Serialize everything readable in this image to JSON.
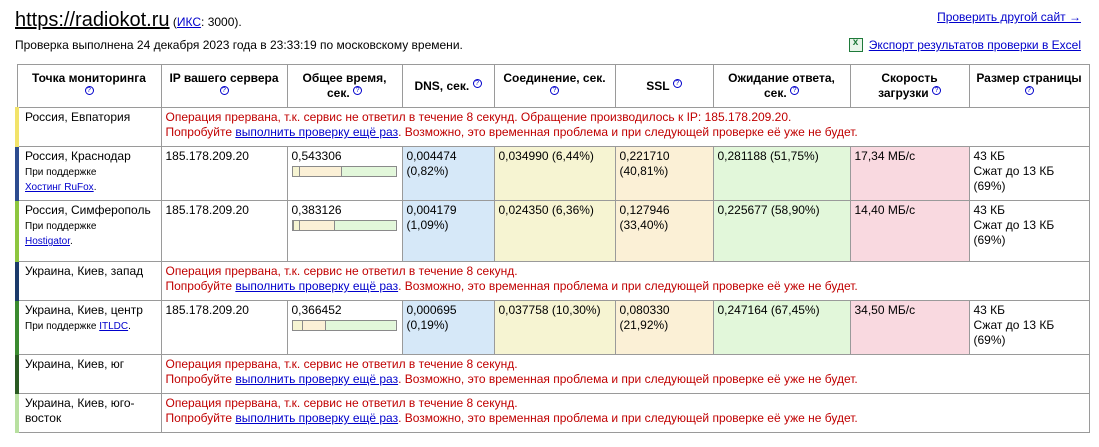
{
  "header": {
    "site": "https://radiokot.ru",
    "iks_label": "ИКС",
    "iks_value": ": 3000).",
    "iks_open": " (",
    "checked": "Проверка выполнена 24 декабря 2023 года в 23:33:19 по московскому времени.",
    "check_other": "Проверить другой сайт →",
    "export": "Экспорт результатов проверки в Excel"
  },
  "columns": {
    "point": "Точка мониторинга",
    "ip": "IP вашего сервера",
    "total": "Общее время, сек.",
    "dns": "DNS, сек.",
    "conn": "Соединение, сек.",
    "ssl": "SSL",
    "wait": "Ожидание ответа, сек.",
    "speed": "Скорость загрузки",
    "size": "Размер страницы"
  },
  "sponsor_prefix": "При поддержке",
  "rows": [
    {
      "location": "Россия, Евпатория",
      "error1": "Операция прервана, т.к. сервис не ответил в течение 8 секунд. Обращение производилось к IP: 185.178.209.20.",
      "err_try": "Попробуйте",
      "err_link": "выполнить проверку ещё раз",
      "err_rest": ". Возможно, это временная проблема и при следующей проверке её уже не будет."
    },
    {
      "location": "Россия, Краснодар",
      "sponsor": "Хостинг RuFox",
      "ip": "185.178.209.20",
      "total": "0,543306",
      "dns": "0,004474",
      "dns_pct": "(0,82%)",
      "conn": "0,034990 (6,44%)",
      "ssl": "0,221710",
      "ssl_pct": "(40,81%)",
      "wait": "0,281188 (51,75%)",
      "speed": "17,34 МБ/с",
      "size": "43 КБ",
      "size_comp": "Сжат до 13 КБ",
      "size_pct": "(69%)",
      "bar": {
        "dns": 0.82,
        "conn": 6.44,
        "ssl": 40.81,
        "wait": 51.75
      }
    },
    {
      "location": "Россия, Симферополь",
      "sponsor": "Hostigator",
      "ip": "185.178.209.20",
      "total": "0,383126",
      "dns": "0,004179",
      "dns_pct": "(1,09%)",
      "conn": "0,024350 (6,36%)",
      "ssl": "0,127946",
      "ssl_pct": "(33,40%)",
      "wait": "0,225677 (58,90%)",
      "speed": "14,40 МБ/с",
      "size": "43 КБ",
      "size_comp": "Сжат до 13 КБ",
      "size_pct": "(69%)",
      "bar": {
        "dns": 1.09,
        "conn": 6.36,
        "ssl": 33.4,
        "wait": 58.9
      }
    },
    {
      "location": "Украина, Киев, запад",
      "error1": "Операция прервана, т.к. сервис не ответил в течение 8 секунд.",
      "err_try": "Попробуйте",
      "err_link": "выполнить проверку ещё раз",
      "err_rest": ". Возможно, это временная проблема и при следующей проверке её уже не будет."
    },
    {
      "location": "Украина, Киев, центр",
      "sponsor": "ITLDC",
      "ip": "185.178.209.20",
      "total": "0,366452",
      "dns": "0,000695",
      "dns_pct": "(0,19%)",
      "conn": "0,037758 (10,30%)",
      "ssl": "0,080330",
      "ssl_pct": "(21,92%)",
      "wait": "0,247164 (67,45%)",
      "speed": "34,50 МБ/с",
      "size": "43 КБ",
      "size_comp": "Сжат до 13 КБ",
      "size_pct": "(69%)",
      "bar": {
        "dns": 0.19,
        "conn": 10.3,
        "ssl": 21.92,
        "wait": 67.45
      }
    },
    {
      "location": "Украина, Киев, юг",
      "error1": "Операция прервана, т.к. сервис не ответил в течение 8 секунд.",
      "err_try": "Попробуйте",
      "err_link": "выполнить проверку ещё раз",
      "err_rest": ". Возможно, это временная проблема и при следующей проверке её уже не будет."
    },
    {
      "location": "Украина, Киев, юго-восток",
      "error1": "Операция прервана, т.к. сервис не ответил в течение 8 секунд.",
      "err_try": "Попробуйте",
      "err_link": "выполнить проверку ещё раз",
      "err_rest": ". Возможно, это временная проблема и при следующей проверке её уже не будет."
    }
  ],
  "colors": {
    "dns": "#d6e8f8",
    "conn": "#f6f4d2",
    "ssl": "#fbf0d6",
    "wait": "#e2f7da",
    "speed": "#f9d9e0",
    "error": "#c00000",
    "link": "#0000cc"
  }
}
